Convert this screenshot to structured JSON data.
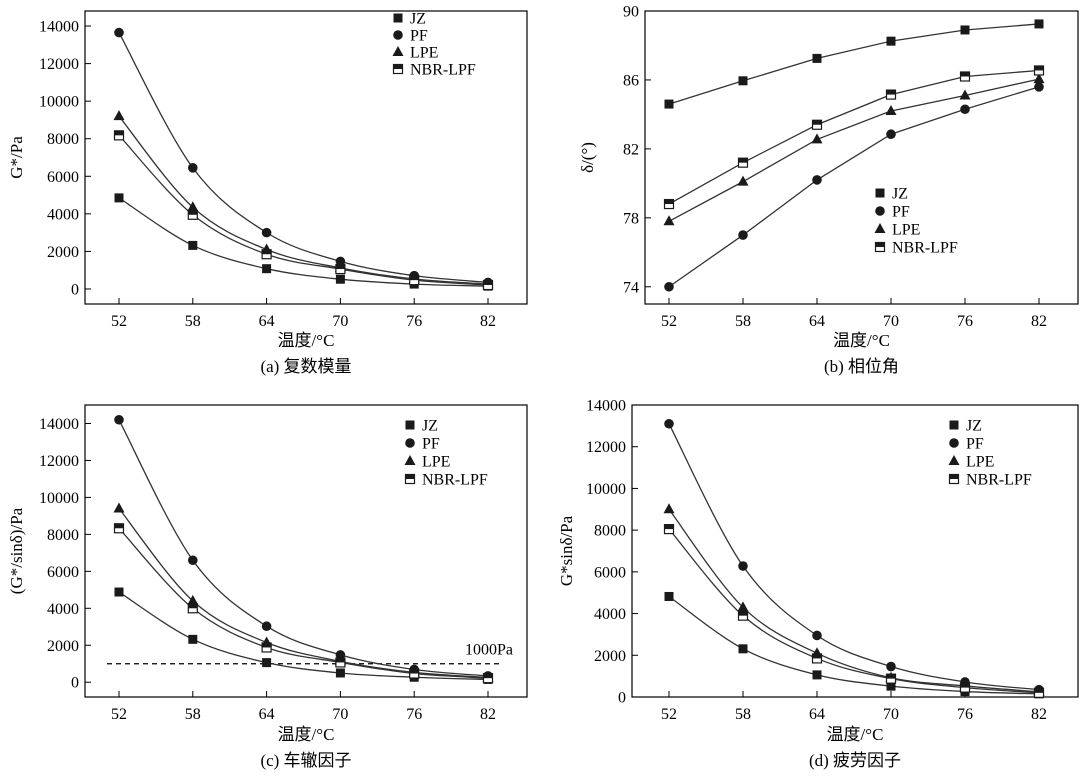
{
  "chart_data": [
    {
      "type": "line",
      "caption": "(a) 复数模量",
      "xlabel": "温度/°C",
      "ylabel": "G*/Pa",
      "categories": [
        "52",
        "58",
        "64",
        "70",
        "76",
        "82"
      ],
      "yticks": [
        "0",
        "2000",
        "4000",
        "6000",
        "8000",
        "10000",
        "12000",
        "14000"
      ],
      "ylim": [
        -800,
        14800
      ],
      "legend_position": "top-right",
      "grid": false,
      "series": [
        {
          "name": "JZ",
          "marker": "square",
          "values": [
            4850,
            2320,
            1080,
            520,
            260,
            150
          ]
        },
        {
          "name": "PF",
          "marker": "circle",
          "values": [
            13650,
            6450,
            3000,
            1470,
            710,
            350
          ]
        },
        {
          "name": "LPE",
          "marker": "triangle",
          "values": [
            9200,
            4350,
            2100,
            1120,
            530,
            260
          ]
        },
        {
          "name": "NBR-LPF",
          "marker": "half-square",
          "values": [
            8180,
            3950,
            1850,
            1060,
            470,
            210
          ]
        }
      ]
    },
    {
      "type": "line",
      "caption": "(b) 相位角",
      "xlabel": "温度/°C",
      "ylabel": "δ/(°)",
      "categories": [
        "52",
        "58",
        "64",
        "70",
        "76",
        "82"
      ],
      "yticks": [
        "74",
        "78",
        "82",
        "86",
        "90"
      ],
      "ylim": [
        73,
        90
      ],
      "legend_position": "center-right",
      "grid": false,
      "series": [
        {
          "name": "JZ",
          "marker": "square",
          "values": [
            84.6,
            85.95,
            87.25,
            88.25,
            88.9,
            89.25
          ]
        },
        {
          "name": "PF",
          "marker": "circle",
          "values": [
            74.0,
            77.0,
            80.2,
            82.85,
            84.3,
            85.6
          ]
        },
        {
          "name": "LPE",
          "marker": "triangle",
          "values": [
            77.8,
            80.1,
            82.55,
            84.2,
            85.1,
            86.05
          ]
        },
        {
          "name": "NBR-LPF",
          "marker": "half-square",
          "values": [
            78.8,
            81.2,
            83.4,
            85.15,
            86.2,
            86.55
          ]
        }
      ]
    },
    {
      "type": "line",
      "caption": "(c) 车辙因子",
      "xlabel": "温度/°C",
      "ylabel": "(G*/sinδ)/Pa",
      "categories": [
        "52",
        "58",
        "64",
        "70",
        "76",
        "82"
      ],
      "yticks": [
        "0",
        "2000",
        "4000",
        "6000",
        "8000",
        "10000",
        "12000",
        "14000"
      ],
      "ylim": [
        -800,
        15000
      ],
      "legend_position": "top-right",
      "grid": false,
      "reference_line": {
        "value": 1000,
        "label": "1000Pa"
      },
      "series": [
        {
          "name": "JZ",
          "marker": "square",
          "values": [
            4880,
            2320,
            1060,
            500,
            270,
            150
          ]
        },
        {
          "name": "PF",
          "marker": "circle",
          "values": [
            14200,
            6600,
            3030,
            1480,
            690,
            340
          ]
        },
        {
          "name": "LPE",
          "marker": "triangle",
          "values": [
            9400,
            4400,
            2150,
            1130,
            530,
            260
          ]
        },
        {
          "name": "NBR-LPF",
          "marker": "half-square",
          "values": [
            8330,
            4000,
            1880,
            1070,
            470,
            220
          ]
        }
      ]
    },
    {
      "type": "line",
      "caption": "(d) 疲劳因子",
      "xlabel": "温度/°C",
      "ylabel": "G*sinδ/Pa",
      "categories": [
        "52",
        "58",
        "64",
        "70",
        "76",
        "82"
      ],
      "yticks": [
        "0",
        "2000",
        "4000",
        "6000",
        "8000",
        "10000",
        "12000",
        "14000"
      ],
      "ylim": [
        0,
        14000
      ],
      "legend_position": "top-right",
      "grid": false,
      "series": [
        {
          "name": "JZ",
          "marker": "square",
          "values": [
            4820,
            2310,
            1060,
            520,
            260,
            150
          ]
        },
        {
          "name": "PF",
          "marker": "circle",
          "values": [
            13100,
            6280,
            2950,
            1460,
            720,
            350
          ]
        },
        {
          "name": "LPE",
          "marker": "triangle",
          "values": [
            9000,
            4300,
            2100,
            920,
            530,
            250
          ]
        },
        {
          "name": "NBR-LPF",
          "marker": "half-square",
          "values": [
            8050,
            3900,
            1850,
            880,
            450,
            200
          ]
        }
      ]
    }
  ]
}
